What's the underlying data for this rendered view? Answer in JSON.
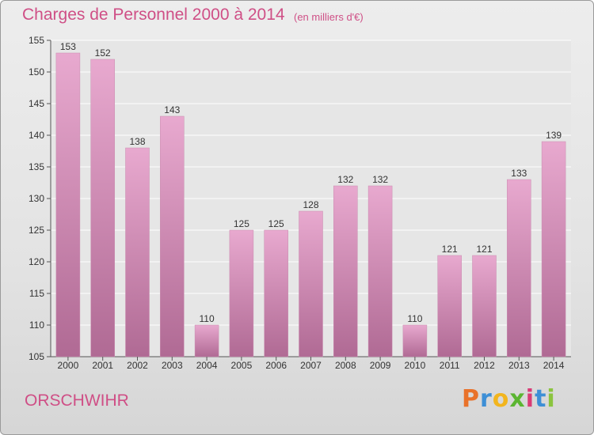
{
  "title": "Charges de Personnel 2000 à 2014",
  "subtitle": "(en milliers d'€)",
  "commune": "ORSCHWIHR",
  "logo": {
    "letters": [
      "P",
      "r",
      "o",
      "x",
      "i",
      "t",
      "i"
    ],
    "colors": [
      "#e9722a",
      "#3d8fd6",
      "#f2b51e",
      "#5bb531",
      "#d93b76",
      "#3d8fd6",
      "#8bc43f"
    ]
  },
  "colors": {
    "bar_top": "#e8a9cf",
    "bar_bottom": "#b06a94",
    "title": "#cf4f86"
  },
  "chart_data": {
    "type": "bar",
    "categories": [
      "2000",
      "2001",
      "2002",
      "2003",
      "2004",
      "2005",
      "2006",
      "2007",
      "2008",
      "2009",
      "2010",
      "2011",
      "2012",
      "2013",
      "2014"
    ],
    "values": [
      153,
      152,
      138,
      143,
      110,
      125,
      125,
      128,
      132,
      132,
      110,
      121,
      121,
      133,
      139
    ],
    "ylim": [
      105,
      155
    ],
    "yticks": [
      105,
      110,
      115,
      120,
      125,
      130,
      135,
      140,
      145,
      150,
      155
    ],
    "title": "Charges de Personnel 2000 à 2014",
    "xlabel": "",
    "ylabel": "",
    "grid": true
  }
}
